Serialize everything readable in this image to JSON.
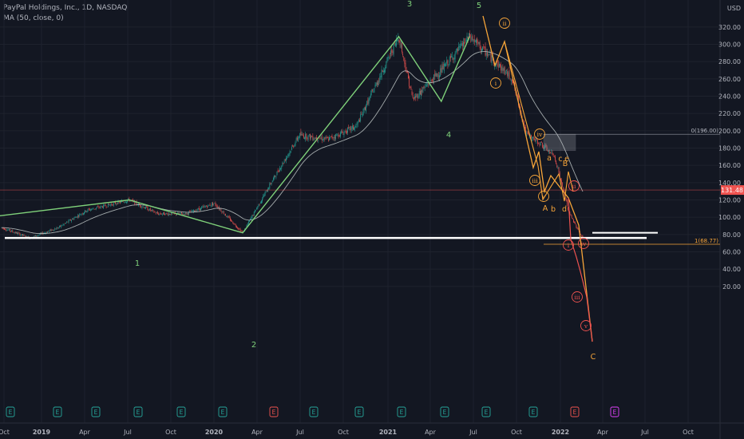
{
  "legend": {
    "title": "PayPal Holdings, Inc., 1D, NASDAQ",
    "indicator": "MA (50, close, 0)"
  },
  "colors": {
    "background": "#131722",
    "grid": "#1e222d",
    "axis_text": "#b2b5be",
    "candle_up": "#26a69a",
    "candle_down": "#ef5350",
    "wave_green": "#7fd17a",
    "wave_orange": "#f7a539",
    "wave_red": "#ef5350",
    "wave_white": "#ffffff",
    "ma": "#c9d1cf",
    "price_line": "#ef5350",
    "fib_level": "#f7a539"
  },
  "chart_data": {
    "type": "candlestick",
    "symbol": "PayPal Holdings, Inc., 1D, NASDAQ",
    "y_unit": "USD",
    "ylim": [
      16,
      320
    ],
    "y_ticks": [
      20,
      40,
      60,
      80,
      100,
      120,
      140,
      160,
      180,
      200,
      220,
      240,
      260,
      280,
      300,
      320
    ],
    "x_ticks": [
      "Oct",
      "2019",
      "Apr",
      "Jul",
      "Oct",
      "2020",
      "Apr",
      "Jul",
      "Oct",
      "2021",
      "Apr",
      "Jul",
      "Oct",
      "2022",
      "Apr",
      "Jul",
      "Oct"
    ],
    "current_price": "131.48",
    "price_path": [
      [
        "2018-10",
        88
      ],
      [
        "2018-12",
        76
      ],
      [
        "2019-02",
        88
      ],
      [
        "2019-04",
        108
      ],
      [
        "2019-07",
        120
      ],
      [
        "2019-09",
        104
      ],
      [
        "2019-11",
        104
      ],
      [
        "2020-01",
        116
      ],
      [
        "2020-03",
        82
      ],
      [
        "2020-05",
        140
      ],
      [
        "2020-07",
        195
      ],
      [
        "2020-09",
        190
      ],
      [
        "2020-11",
        205
      ],
      [
        "2021-02",
        309
      ],
      [
        "2021-03",
        236
      ],
      [
        "2021-05",
        270
      ],
      [
        "2021-07",
        309
      ],
      [
        "2021-10",
        260
      ],
      [
        "2021-11",
        196
      ],
      [
        "2021-12",
        185
      ],
      [
        "2022-01",
        170
      ],
      [
        "2022-02",
        105
      ],
      [
        "2022-03",
        75
      ]
    ],
    "ma_label": "MA (50, close, 0)",
    "wave_count_green": [
      {
        "label": "1",
        "date": "2019-07",
        "price": 120
      },
      {
        "label": "2",
        "date": "2020-03",
        "price": 82
      },
      {
        "label": "3",
        "date": "2021-02",
        "price": 309
      },
      {
        "label": "4",
        "date": "2021-05",
        "price": 234
      },
      {
        "label": "5",
        "date": "2021-07",
        "price": 309
      }
    ],
    "wave_count_circled": [
      "i",
      "ii",
      "iii",
      "iv",
      "v"
    ],
    "wave_count_abc": [
      "A",
      "B",
      "C",
      "a",
      "b",
      "c",
      "d",
      "e"
    ],
    "fib_levels": [
      {
        "label": "0(196.00)",
        "value": 196.0
      },
      {
        "label": "1(68.77)",
        "value": 68.77
      }
    ],
    "support_lines_price": [
      76,
      77,
      82
    ],
    "earnings_markers": [
      "E",
      "E",
      "E",
      "E",
      "E",
      "E",
      "E",
      "E",
      "E",
      "E",
      "E",
      "E",
      "E",
      "E"
    ],
    "earnings_marker_alt": [
      "E",
      "E"
    ]
  }
}
